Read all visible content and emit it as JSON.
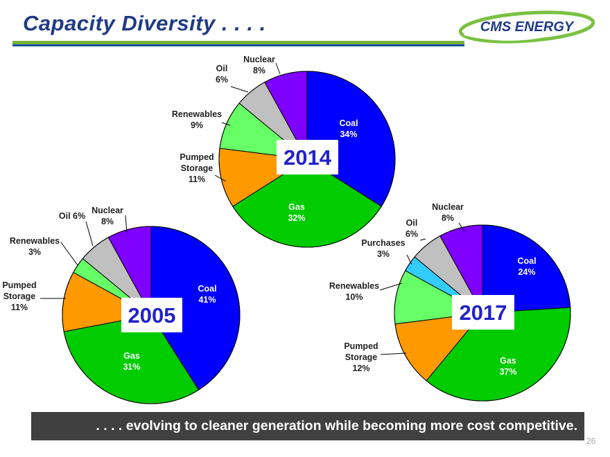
{
  "slide": {
    "title": "Capacity Diversity . . . .",
    "logo_text": "CMS ENERGY",
    "banner": ". . . . evolving to cleaner generation while becoming more cost competitive.",
    "page_number": "26",
    "colors": {
      "title": "#1f3b86",
      "rule_green": "#72b43a",
      "rule_blue": "#1f4ca0",
      "banner_bg": "#404040",
      "year_label": "#2222c8"
    }
  },
  "chart_data": [
    {
      "type": "pie",
      "title": "2014",
      "slices": [
        {
          "label": "Coal",
          "value": 34,
          "text": "Coal\n34%",
          "color": "#0000ff"
        },
        {
          "label": "Gas",
          "value": 32,
          "text": "Gas\n32%",
          "color": "#00cc00"
        },
        {
          "label": "Pumped Storage",
          "value": 11,
          "text": "Pumped\nStorage\n11%",
          "color": "#ff9900"
        },
        {
          "label": "Renewables",
          "value": 9,
          "text": "Renewables\n9%",
          "color": "#66ff66"
        },
        {
          "label": "Oil",
          "value": 6,
          "text": "Oil\n6%",
          "color": "#c0c0c0"
        },
        {
          "label": "Nuclear",
          "value": 8,
          "text": "Nuclear\n8%",
          "color": "#7f00ff"
        }
      ]
    },
    {
      "type": "pie",
      "title": "2005",
      "slices": [
        {
          "label": "Coal",
          "value": 41,
          "text": "Coal\n41%",
          "color": "#0000ff"
        },
        {
          "label": "Gas",
          "value": 31,
          "text": "Gas\n31%",
          "color": "#00cc00"
        },
        {
          "label": "Pumped Storage",
          "value": 11,
          "text": "Pumped\nStorage\n11%",
          "color": "#ff9900"
        },
        {
          "label": "Renewables",
          "value": 3,
          "text": "Renewables\n3%",
          "color": "#66ff66"
        },
        {
          "label": "Oil",
          "value": 6,
          "text": "Oil 6%",
          "color": "#c0c0c0"
        },
        {
          "label": "Nuclear",
          "value": 8,
          "text": "Nuclear\n8%",
          "color": "#7f00ff"
        }
      ]
    },
    {
      "type": "pie",
      "title": "2017",
      "slices": [
        {
          "label": "Coal",
          "value": 24,
          "text": "Coal\n24%",
          "color": "#0000ff"
        },
        {
          "label": "Gas",
          "value": 37,
          "text": "Gas\n37%",
          "color": "#00cc00"
        },
        {
          "label": "Pumped Storage",
          "value": 12,
          "text": "Pumped\nStorage\n12%",
          "color": "#ff9900"
        },
        {
          "label": "Renewables",
          "value": 10,
          "text": "Renewables\n10%",
          "color": "#66ff66"
        },
        {
          "label": "Purchases",
          "value": 3,
          "text": "Purchases\n3%",
          "color": "#33ccff"
        },
        {
          "label": "Oil",
          "value": 6,
          "text": "Oil\n6%",
          "color": "#c0c0c0"
        },
        {
          "label": "Nuclear",
          "value": 8,
          "text": "Nuclear\n8%",
          "color": "#7f00ff"
        }
      ]
    }
  ]
}
